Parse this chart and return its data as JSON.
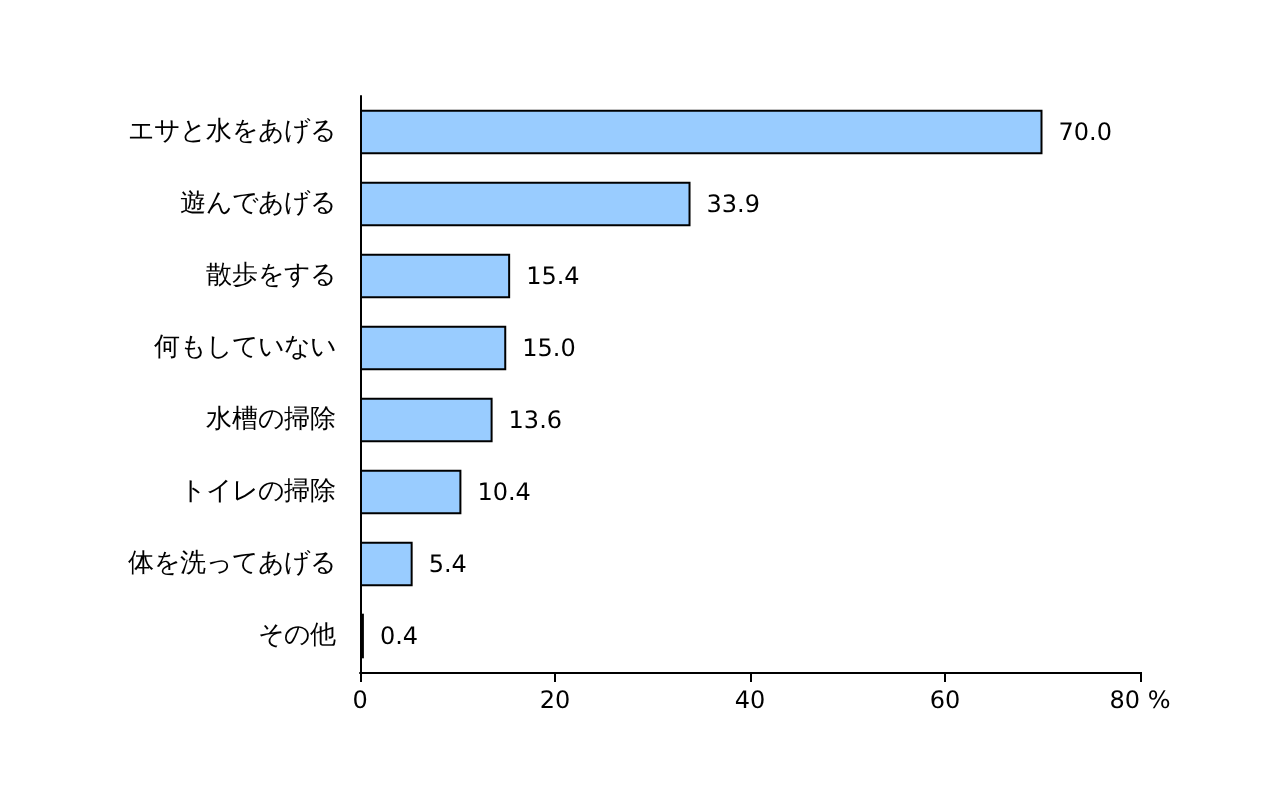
{
  "chart_data": {
    "type": "bar",
    "orientation": "horizontal",
    "categories": [
      "エサと水をあげる",
      "遊んであげる",
      "散歩をする",
      "何もしていない",
      "水槽の掃除",
      "トイレの掃除",
      "体を洗ってあげる",
      "その他"
    ],
    "values": [
      70.0,
      33.9,
      15.4,
      15.0,
      13.6,
      10.4,
      5.4,
      0.4
    ],
    "value_labels": [
      "70.0",
      "33.9",
      "15.4",
      "15.0",
      "13.6",
      "10.4",
      "5.4",
      "0.4"
    ],
    "color": "#99ccff",
    "xlim": [
      0,
      80
    ],
    "xticks": [
      0,
      20,
      40,
      60,
      {
        "value": 80,
        "label": "80 %"
      }
    ],
    "grid": false
  }
}
